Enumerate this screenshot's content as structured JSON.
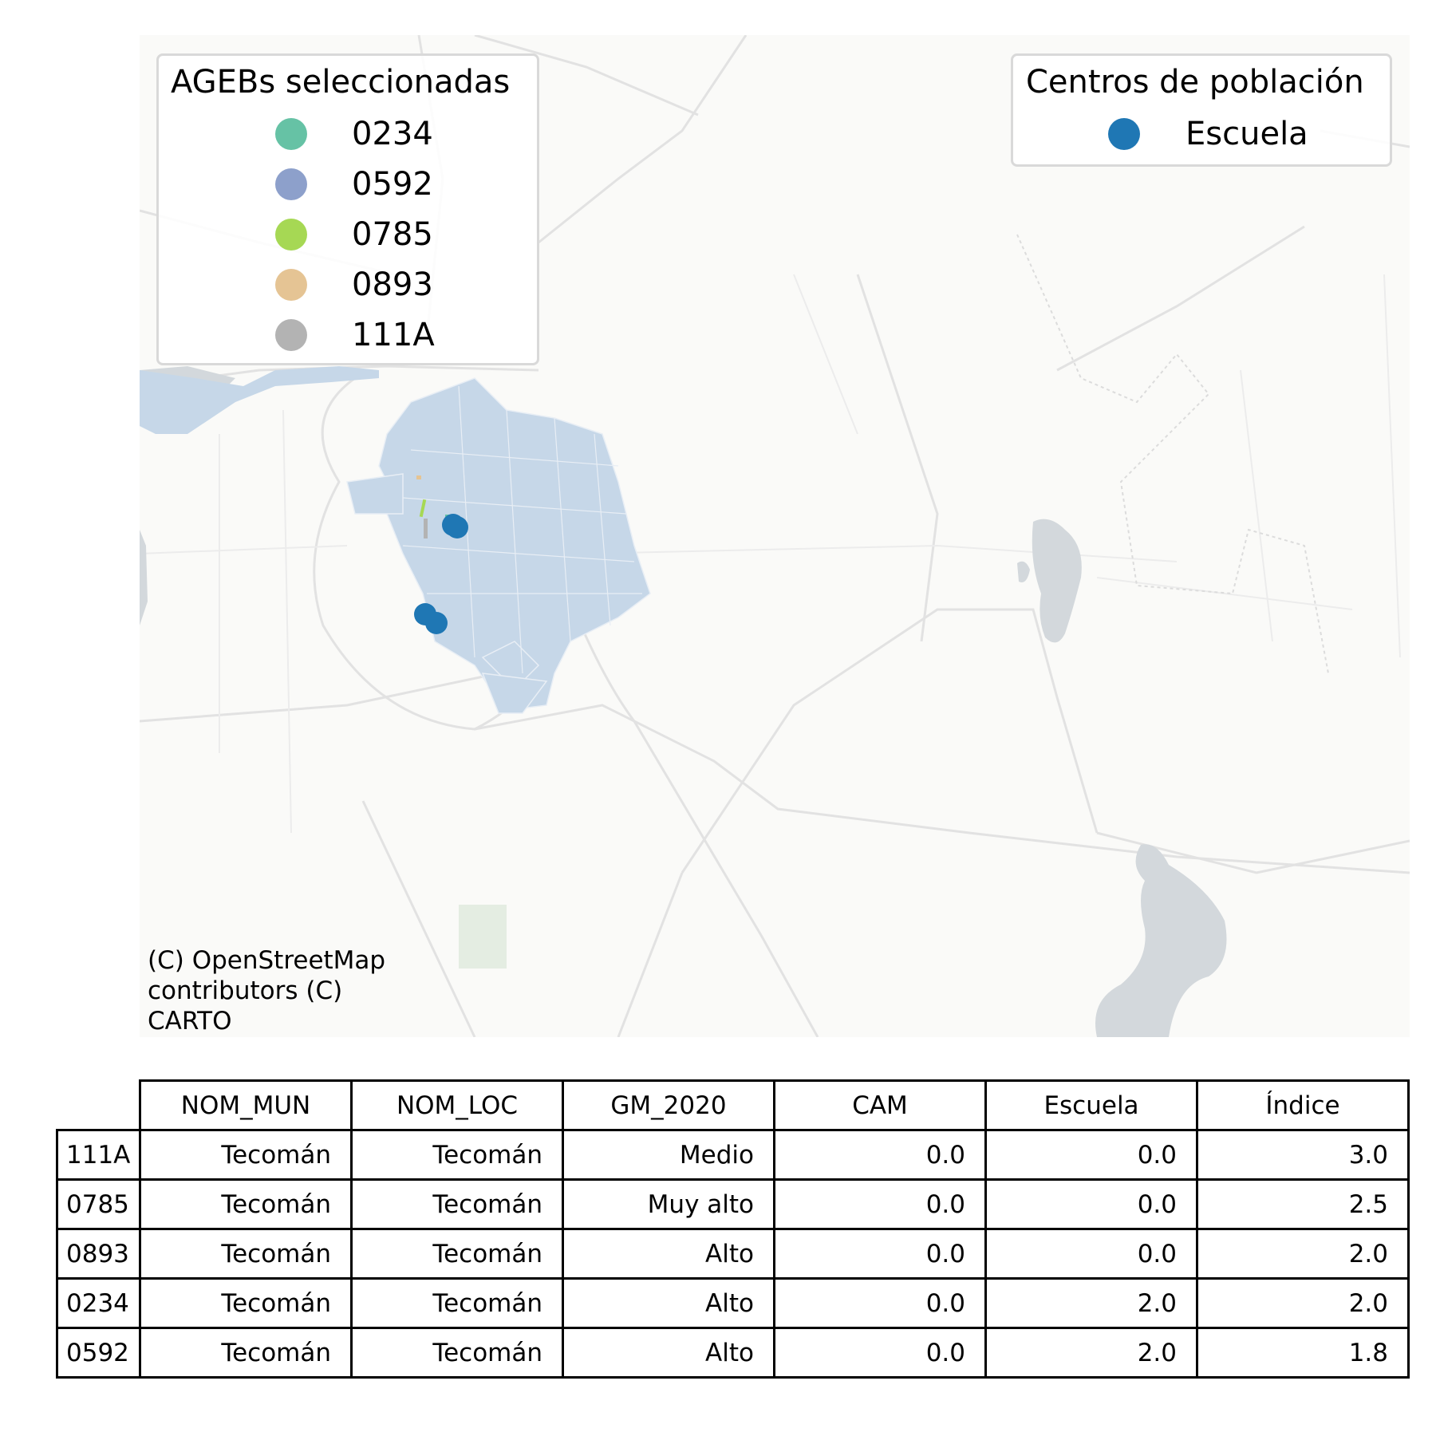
{
  "map": {
    "colors": {
      "background": "#fafaf8",
      "water": "#d3d8dc",
      "urban_area": "#c6d7e8",
      "park": "#e4ede2",
      "road": "#e2e2e2",
      "school_marker": "#1f77b4"
    },
    "attribution_lines": [
      "(C) OpenStreetMap",
      "contributors (C)",
      "CARTO"
    ]
  },
  "legend_agebs": {
    "title": "AGEBs seleccionadas",
    "items": [
      {
        "label": "0234",
        "color": "#66c2a5"
      },
      {
        "label": "0592",
        "color": "#8da0cb"
      },
      {
        "label": "0785",
        "color": "#a6d854"
      },
      {
        "label": "0893",
        "color": "#e5c494"
      },
      {
        "label": "111A",
        "color": "#b3b3b3"
      }
    ]
  },
  "legend_centros": {
    "title": "Centros de población",
    "items": [
      {
        "label": "Escuela",
        "color": "#1f77b4"
      }
    ]
  },
  "table": {
    "columns": [
      "NOM_MUN",
      "NOM_LOC",
      "GM_2020",
      "CAM",
      "Escuela",
      "Índice"
    ],
    "rows": [
      {
        "id": "111A",
        "cells": [
          "Tecomán",
          "Tecomán",
          "Medio",
          "0.0",
          "0.0",
          "3.0"
        ]
      },
      {
        "id": "0785",
        "cells": [
          "Tecomán",
          "Tecomán",
          "Muy alto",
          "0.0",
          "0.0",
          "2.5"
        ]
      },
      {
        "id": "0893",
        "cells": [
          "Tecomán",
          "Tecomán",
          "Alto",
          "0.0",
          "0.0",
          "2.0"
        ]
      },
      {
        "id": "0234",
        "cells": [
          "Tecomán",
          "Tecomán",
          "Alto",
          "0.0",
          "2.0",
          "2.0"
        ]
      },
      {
        "id": "0592",
        "cells": [
          "Tecomán",
          "Tecomán",
          "Alto",
          "0.0",
          "2.0",
          "1.8"
        ]
      }
    ]
  }
}
